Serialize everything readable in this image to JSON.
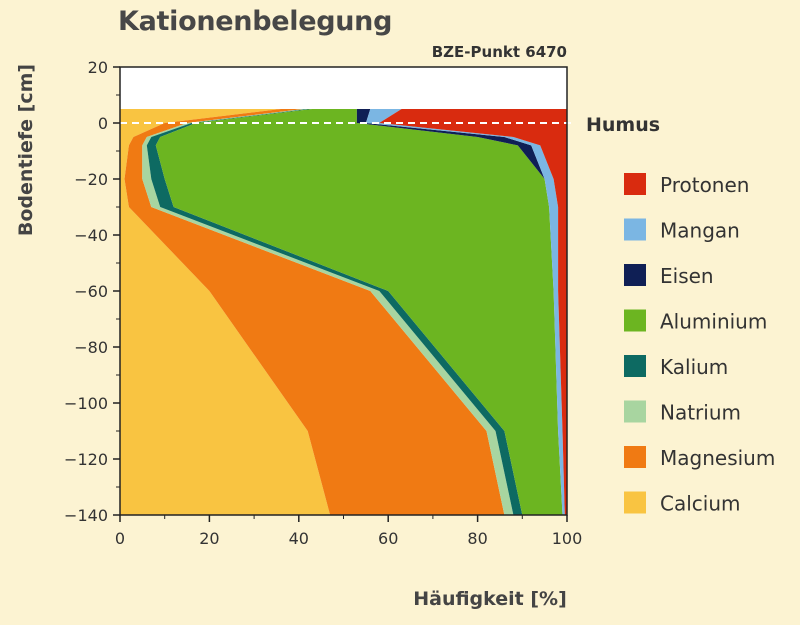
{
  "chart_data": {
    "type": "area",
    "title": "Kationenbelegung",
    "subtitle": "BZE-Punkt 6470",
    "xlabel": "Häufigkeit [%]",
    "ylabel": "Bodentiefe [cm]",
    "xlim": [
      0,
      100
    ],
    "ylim": [
      -140,
      20
    ],
    "xticks": [
      0,
      20,
      40,
      60,
      80,
      100
    ],
    "yticks": [
      20,
      0,
      -20,
      -40,
      -60,
      -80,
      -100,
      -120,
      -140
    ],
    "annotation": {
      "text": "Humus",
      "depth": 0
    },
    "surface_depth": 5,
    "depths": [
      5,
      0,
      -5,
      -8,
      -20,
      -30,
      -60,
      -110,
      -140
    ],
    "series": [
      {
        "name": "Calcium",
        "color": "#f9c441",
        "cumulative": [
          36,
          10,
          3,
          2,
          1,
          2,
          20,
          42,
          47
        ]
      },
      {
        "name": "Magnesium",
        "color": "#f07a13",
        "cumulative": [
          41,
          15,
          6,
          5,
          5,
          7,
          56,
          82,
          86
        ]
      },
      {
        "name": "Natrium",
        "color": "#a8d5a0",
        "cumulative": [
          42,
          16,
          7,
          6,
          7,
          9,
          58,
          84,
          88
        ]
      },
      {
        "name": "Kalium",
        "color": "#0d6a62",
        "cumulative": [
          43,
          17,
          9,
          8,
          10,
          12,
          60,
          86,
          90
        ]
      },
      {
        "name": "Aluminium",
        "color": "#6cb521",
        "cumulative": [
          53,
          53,
          80,
          89,
          95,
          96,
          97,
          98,
          99
        ]
      },
      {
        "name": "Eisen",
        "color": "#0f1f55",
        "cumulative": [
          56,
          55,
          86,
          92,
          95,
          96,
          97,
          98,
          99
        ]
      },
      {
        "name": "Mangan",
        "color": "#7bb6e3",
        "cumulative": [
          63,
          58,
          88,
          94,
          97,
          98,
          98,
          99,
          99.5
        ]
      },
      {
        "name": "Protonen",
        "color": "#d92b0f",
        "cumulative": [
          100,
          100,
          100,
          100,
          100,
          100,
          100,
          100,
          100
        ]
      }
    ]
  }
}
